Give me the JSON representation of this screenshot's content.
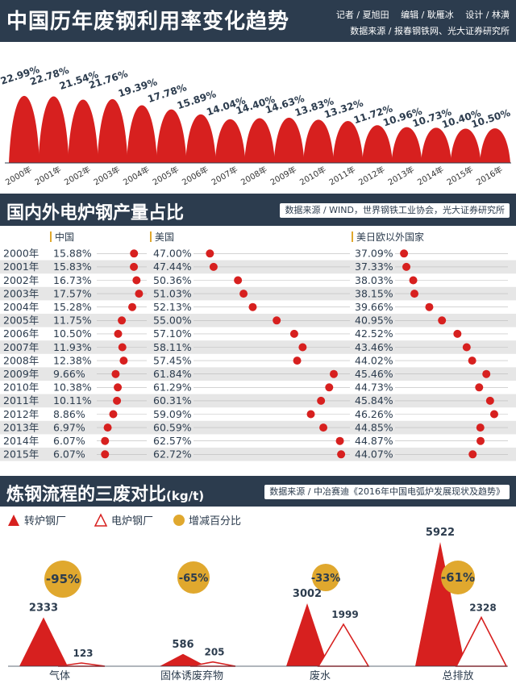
{
  "section1": {
    "title": "中国历年废钢利用率变化趋势",
    "credits": "记者 / 夏旭田　 编辑 / 耿雁冰　 设计 / 林潢",
    "source": "数据来源 / 报春钢铁网、光大证券研究所"
  },
  "section2": {
    "title": "国内外电炉钢产量占比",
    "source": "数据来源 / WIND，世界钢铁工业协会，光大证券研究所"
  },
  "section3": {
    "title": "炼钢流程的三废对比",
    "unit": "(kg/t)",
    "source": "数据来源 / 中冶赛迪《2016年中国电弧炉发展现状及趋势》",
    "legend": [
      "转炉钢厂",
      "电炉钢厂",
      "增减百分比"
    ]
  },
  "colors": {
    "header_bg": "#2c3c4e",
    "red": "#d7201f",
    "gold": "#e0a82e",
    "row_alt": "#e6e6e6"
  },
  "chart_data": [
    {
      "type": "area",
      "title": "中国历年废钢利用率变化趋势",
      "categories": [
        "2000年",
        "2001年",
        "2002年",
        "2003年",
        "2004年",
        "2005年",
        "2006年",
        "2007年",
        "2008年",
        "2009年",
        "2010年",
        "2011年",
        "2012年",
        "2013年",
        "2014年",
        "2015年",
        "2016年"
      ],
      "values": [
        22.99,
        22.78,
        21.54,
        21.76,
        19.39,
        17.78,
        15.89,
        14.04,
        14.4,
        14.63,
        13.83,
        13.32,
        11.72,
        10.96,
        10.73,
        10.4,
        10.5
      ],
      "labels": [
        "22.99%",
        "22.78%",
        "21.54%",
        "21.76%",
        "19.39%",
        "17.78%",
        "15.89%",
        "14.04%",
        "14.40%",
        "14.63%",
        "13.83%",
        "13.32%",
        "11.72%",
        "10.96%",
        "10.73%",
        "10.40%",
        "10.50%"
      ],
      "ylim": [
        0,
        25
      ]
    },
    {
      "type": "scatter",
      "title": "国内外电炉钢产量占比",
      "categories": [
        "2000年",
        "2001年",
        "2002年",
        "2003年",
        "2004年",
        "2005年",
        "2006年",
        "2007年",
        "2008年",
        "2009年",
        "2010年",
        "2011年",
        "2012年",
        "2013年",
        "2014年",
        "2015年"
      ],
      "series": [
        {
          "name": "中国",
          "values": [
            15.88,
            15.83,
            16.73,
            17.57,
            15.28,
            11.75,
            10.5,
            11.93,
            12.38,
            9.66,
            10.38,
            10.11,
            8.86,
            6.97,
            6.07,
            6.07
          ],
          "labels": [
            "15.88%",
            "15.83%",
            "16.73%",
            "17.57%",
            "15.28%",
            "11.75%",
            "10.50%",
            "11.93%",
            "12.38%",
            "9.66%",
            "10.38%",
            "10.11%",
            "8.86%",
            "6.97%",
            "6.07%",
            "6.07%"
          ]
        },
        {
          "name": "美国",
          "values": [
            47.0,
            47.44,
            50.36,
            51.03,
            52.13,
            55.0,
            57.1,
            58.11,
            57.45,
            61.84,
            61.29,
            60.31,
            59.09,
            60.59,
            62.57,
            62.72
          ],
          "labels": [
            "47.00%",
            "47.44%",
            "50.36%",
            "51.03%",
            "52.13%",
            "55.00%",
            "57.10%",
            "58.11%",
            "57.45%",
            "61.84%",
            "61.29%",
            "60.31%",
            "59.09%",
            "60.59%",
            "62.57%",
            "62.72%"
          ]
        },
        {
          "name": "美日欧以外国家",
          "values": [
            37.09,
            37.33,
            38.03,
            38.15,
            39.66,
            40.95,
            42.52,
            43.46,
            44.02,
            45.46,
            44.73,
            45.84,
            46.26,
            44.85,
            44.87,
            44.07
          ],
          "labels": [
            "37.09%",
            "37.33%",
            "38.03%",
            "38.15%",
            "39.66%",
            "40.95%",
            "42.52%",
            "43.46%",
            "44.02%",
            "45.46%",
            "44.73%",
            "45.84%",
            "46.26%",
            "44.85%",
            "44.87%",
            "44.07%"
          ]
        }
      ]
    },
    {
      "type": "area",
      "title": "炼钢流程的三废对比",
      "unit": "(kg/t)",
      "categories": [
        "气体",
        "固体诱废弃物",
        "废水",
        "总排放"
      ],
      "series": [
        {
          "name": "转炉钢厂",
          "values": [
            2333,
            586,
            3002,
            5922
          ]
        },
        {
          "name": "电炉钢厂",
          "values": [
            123,
            205,
            1999,
            2328
          ]
        }
      ],
      "change_labels": [
        "-95%",
        "-65%",
        "-33%",
        "-61%"
      ]
    }
  ]
}
